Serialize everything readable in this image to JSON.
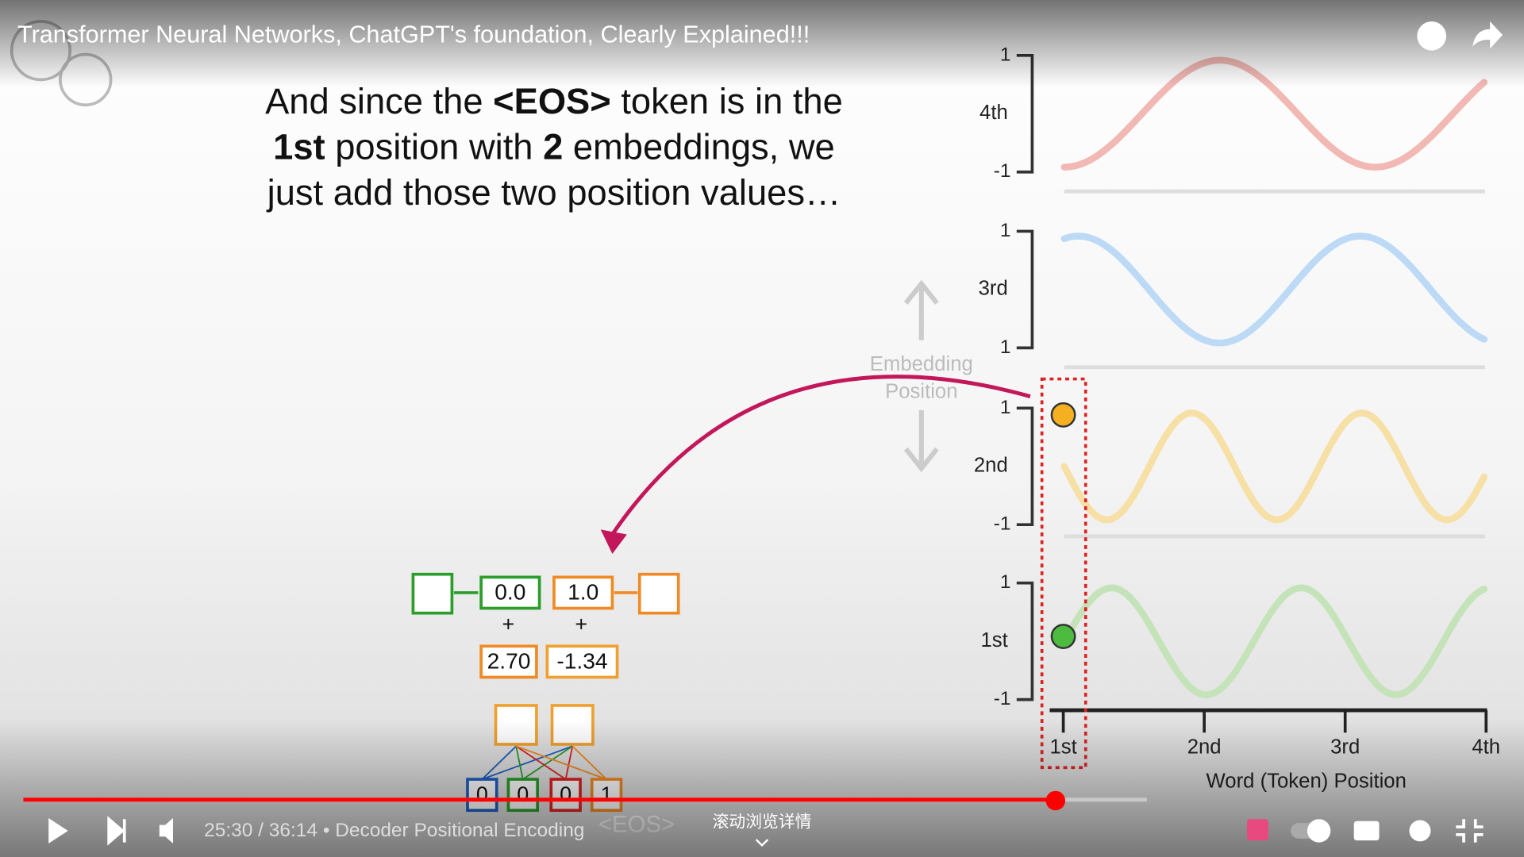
{
  "video": {
    "title": "Transformer Neural Networks, ChatGPT's foundation, Clearly Explained!!!",
    "time": "25:30 / 36:14",
    "separator": "•",
    "chapter": "Decoder Positional Encoding",
    "scroll_hint": "滚动浏览详情"
  },
  "slide": {
    "caption": [
      [
        {
          "text": "And since the ",
          "bold": false
        },
        {
          "text": "<EOS>",
          "bold": true
        },
        {
          "text": " token is in the",
          "bold": false
        }
      ],
      [
        {
          "text": "1st",
          "bold": true
        },
        {
          "text": " position with ",
          "bold": false
        },
        {
          "text": "2",
          "bold": true
        },
        {
          "text": " embeddings, we",
          "bold": false
        }
      ],
      [
        {
          "text": "just add those two position values…",
          "bold": false
        }
      ]
    ],
    "embedding_label": [
      "Embedding",
      "Position"
    ],
    "rows": [
      {
        "label": "4th",
        "top": "1",
        "bottom": "-1",
        "color": "#f2b8b4"
      },
      {
        "label": "3rd",
        "top": "1",
        "bottom": "1",
        "color": "#bcd9f5"
      },
      {
        "label": "2nd",
        "top": "1",
        "bottom": "-1",
        "color": "#f7e0a6"
      },
      {
        "label": "1st",
        "top": "1",
        "bottom": "-1",
        "color": "#c5e3b8"
      }
    ],
    "x_labels": [
      "1st",
      "2nd",
      "3rd",
      "4th"
    ],
    "x_title": "Word (Token) Position",
    "network": {
      "outputs": [
        "0.0",
        "1.0"
      ],
      "plus": [
        "+",
        "+"
      ],
      "sums": [
        "2.70",
        "-1.34"
      ],
      "inputs": [
        "0",
        "0",
        "0",
        "1"
      ],
      "token": "<EOS>"
    }
  }
}
